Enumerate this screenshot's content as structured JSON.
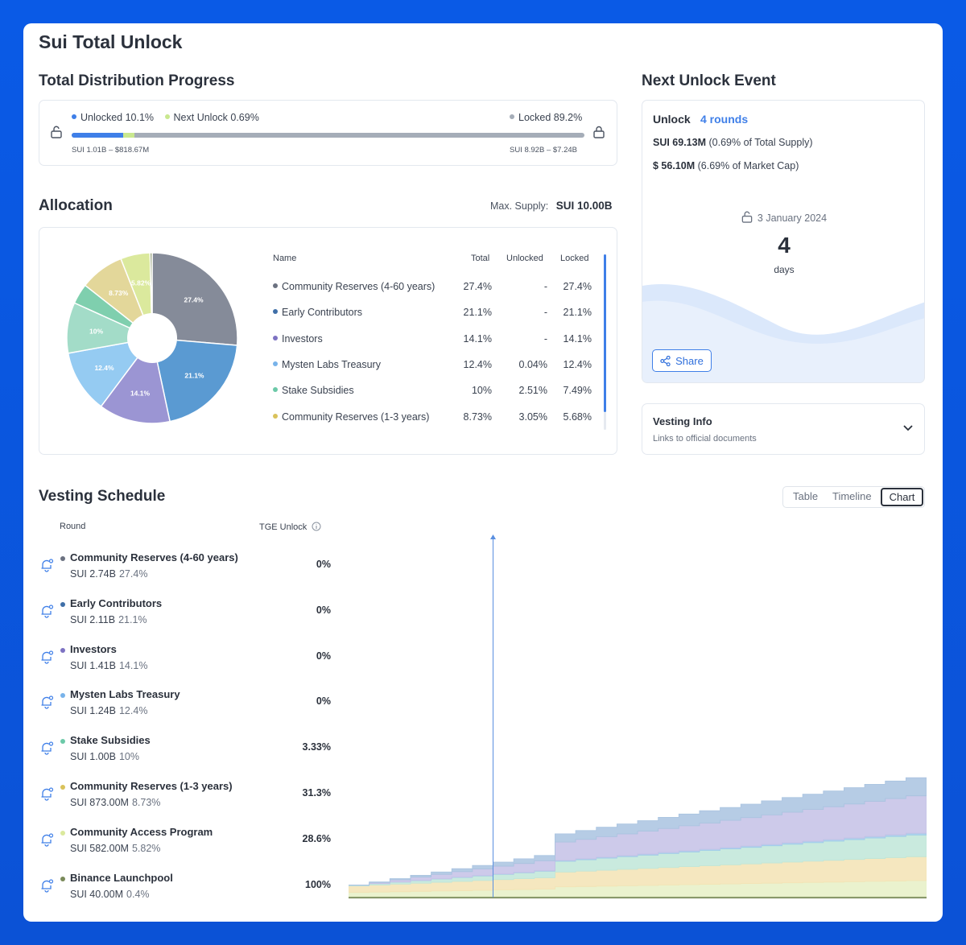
{
  "page": {
    "title": "Sui Total Unlock"
  },
  "distribution": {
    "heading": "Total Distribution Progress",
    "unlocked_label": "Unlocked 10.1%",
    "next_unlock_label": "Next Unlock 0.69%",
    "locked_label": "Locked 89.2%",
    "unlocked_amount": "SUI 1.01B – $818.67M",
    "locked_amount": "SUI 8.92B – $7.24B",
    "unlocked_fraction": 0.101,
    "next_unlock_fraction": 0.0069,
    "colors": {
      "unlocked": "#3f7fe8",
      "next": "#c9e88f",
      "locked": "#a5adb8"
    }
  },
  "allocation": {
    "heading": "Allocation",
    "max_supply_label": "Max. Supply:",
    "max_supply_value": "SUI 10.00B",
    "columns": {
      "name": "Name",
      "total": "Total",
      "unlocked": "Unlocked",
      "locked": "Locked"
    },
    "rows": [
      {
        "name": "Community Reserves (4-60 years)",
        "total": "27.4%",
        "unlocked": "-",
        "locked": "27.4%",
        "color": "#6b7180"
      },
      {
        "name": "Early Contributors",
        "total": "21.1%",
        "unlocked": "-",
        "locked": "21.1%",
        "color": "#3f6fa8"
      },
      {
        "name": "Investors",
        "total": "14.1%",
        "unlocked": "-",
        "locked": "14.1%",
        "color": "#7d72c2"
      },
      {
        "name": "Mysten Labs Treasury",
        "total": "12.4%",
        "unlocked": "0.04%",
        "locked": "12.4%",
        "color": "#78b3ea"
      },
      {
        "name": "Stake Subsidies",
        "total": "10%",
        "unlocked": "2.51%",
        "locked": "7.49%",
        "color": "#6cc9a8"
      },
      {
        "name": "Community Reserves (1-3 years)",
        "total": "8.73%",
        "unlocked": "3.05%",
        "locked": "5.68%",
        "color": "#d9c25a"
      }
    ],
    "pie": {
      "slices": [
        {
          "label": "27.4%",
          "value": 27.4,
          "color": "#858b99"
        },
        {
          "label": "21.1%",
          "value": 21.1,
          "color": "#5a9ad2"
        },
        {
          "label": "14.1%",
          "value": 14.1,
          "color": "#9b95d3"
        },
        {
          "label": "12.4%",
          "value": 12.4,
          "color": "#95cbf2"
        },
        {
          "label": "10%",
          "value": 10,
          "color": "#a3dcc8"
        },
        {
          "label": "",
          "value": 4.0,
          "color": "#7fcfae"
        },
        {
          "label": "8.73%",
          "value": 8.73,
          "color": "#e3d79a"
        },
        {
          "label": "",
          "value": 0.0,
          "color": "#d4c263"
        },
        {
          "label": "5.82%",
          "value": 5.82,
          "color": "#dbe99d"
        },
        {
          "label": "",
          "value": 0.4,
          "color": "#7a8a5a"
        }
      ]
    }
  },
  "next_unlock": {
    "heading": "Next Unlock Event",
    "unlock_label": "Unlock",
    "rounds_label": "4 rounds",
    "sui_amount": "SUI 69.13M",
    "sui_note": "(0.69% of Total Supply)",
    "usd_amount": "$ 56.10M",
    "usd_note": "(6.69% of Market Cap)",
    "date": "3 January 2024",
    "countdown_value": "4",
    "countdown_unit": "days",
    "share_label": "Share"
  },
  "vesting_info": {
    "title": "Vesting Info",
    "subtitle": "Links to official documents"
  },
  "vesting": {
    "heading": "Vesting Schedule",
    "tabs": {
      "table": "Table",
      "timeline": "Timeline",
      "chart": "Chart"
    },
    "columns": {
      "round": "Round",
      "tge": "TGE Unlock"
    },
    "rows": [
      {
        "name": "Community Reserves (4-60 years)",
        "amount": "SUI 2.74B",
        "pct": "27.4%",
        "tge": "0%",
        "color": "#6b7180"
      },
      {
        "name": "Early Contributors",
        "amount": "SUI 2.11B",
        "pct": "21.1%",
        "tge": "0%",
        "color": "#3f6fa8"
      },
      {
        "name": "Investors",
        "amount": "SUI 1.41B",
        "pct": "14.1%",
        "tge": "0%",
        "color": "#7d72c2"
      },
      {
        "name": "Mysten Labs Treasury",
        "amount": "SUI 1.24B",
        "pct": "12.4%",
        "tge": "0%",
        "color": "#78b3ea"
      },
      {
        "name": "Stake Subsidies",
        "amount": "SUI 1.00B",
        "pct": "10%",
        "tge": "3.33%",
        "color": "#6cc9a8"
      },
      {
        "name": "Community Reserves (1-3 years)",
        "amount": "SUI 873.00M",
        "pct": "8.73%",
        "tge": "31.3%",
        "color": "#d9c25a"
      },
      {
        "name": "Community Access Program",
        "amount": "SUI 582.00M",
        "pct": "5.82%",
        "tge": "28.6%",
        "color": "#dbe99d"
      },
      {
        "name": "Binance Launchpool",
        "amount": "SUI 40.00M",
        "pct": "0.4%",
        "tge": "100%",
        "color": "#7a8a5a"
      }
    ]
  },
  "chart_data": {
    "type": "area",
    "title": "",
    "xlabel": "",
    "ylabel": "",
    "grid": false,
    "steps": 28,
    "marker_step": 7,
    "jump_step": 10,
    "series": [
      {
        "color": "#7a8a5a",
        "start": 0.4,
        "end": 0.4,
        "jump": 0
      },
      {
        "color": "#e6f0c6",
        "start": 1.7,
        "end": 5.8,
        "jump": 0.8
      },
      {
        "color": "#f3e3b4",
        "start": 2.7,
        "end": 8.7,
        "jump": 1.2
      },
      {
        "color": "#bfe6d8",
        "start": 0.3,
        "end": 7.5,
        "jump": 1.5
      },
      {
        "color": "#9fcbea",
        "start": 0.0,
        "end": 0.6,
        "jump": 0.1
      },
      {
        "color": "#c4c1e6",
        "start": 0.0,
        "end": 12.5,
        "jump": 3.0
      },
      {
        "color": "#a9c3e0",
        "start": 0.0,
        "end": 6.5,
        "jump": 1.0
      }
    ]
  }
}
